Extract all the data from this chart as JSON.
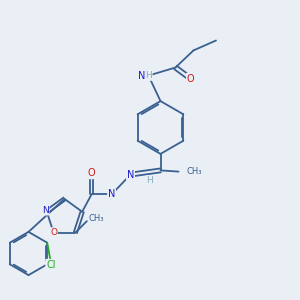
{
  "background_color": "#eaeff5",
  "bond_color": "#3a6090",
  "atom_colors": {
    "N": "#1a1acc",
    "O": "#cc1a1a",
    "Cl": "#22aa22",
    "C": "#3a6090",
    "H": "#8aaabb"
  }
}
